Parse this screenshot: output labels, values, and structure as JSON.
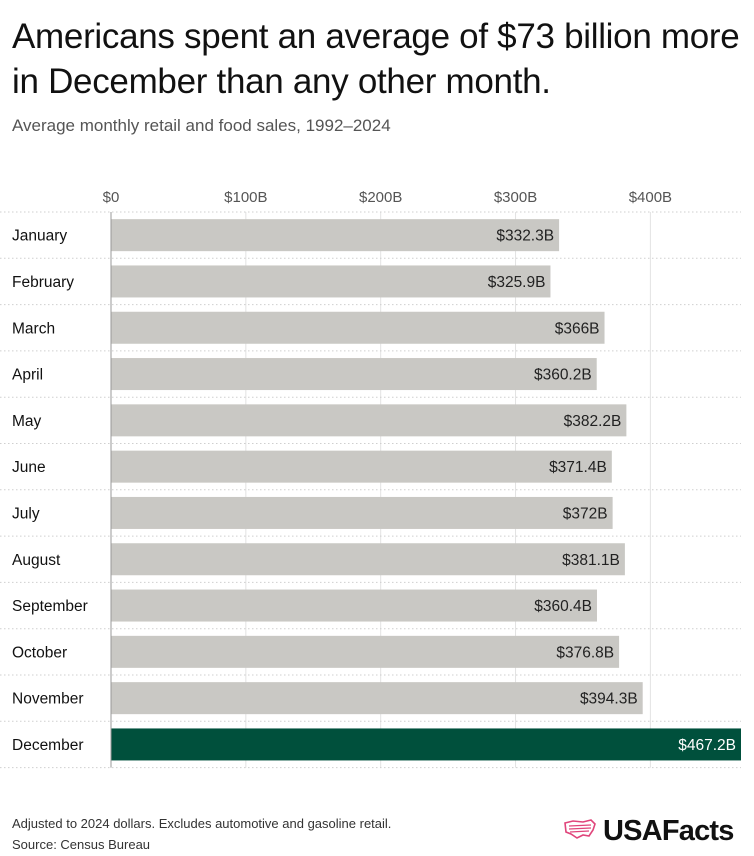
{
  "header": {
    "title": "Americans spent an average of $73 billion more in December than any other month.",
    "subtitle": "Average monthly retail and food sales, 1992–2024"
  },
  "footer": {
    "note": "Adjusted to 2024 dollars. Excludes automotive and gasoline retail.",
    "source": "Source: Census Bureau",
    "brand": "USAFacts"
  },
  "colors": {
    "bar": "#c9c8c4",
    "highlight": "#00503c",
    "brand_accent": "#e0457b"
  },
  "icons": {
    "logo": "usa-map-flag-icon"
  },
  "chart_data": {
    "type": "bar",
    "orientation": "horizontal",
    "categories": [
      "January",
      "February",
      "March",
      "April",
      "May",
      "June",
      "July",
      "August",
      "September",
      "October",
      "November",
      "December"
    ],
    "values": [
      332.3,
      325.9,
      366,
      360.2,
      382.2,
      371.4,
      372,
      381.1,
      360.4,
      376.8,
      394.3,
      467.2
    ],
    "value_labels": [
      "$332.3B",
      "$325.9B",
      "$366B",
      "$360.2B",
      "$382.2B",
      "$371.4B",
      "$372B",
      "$381.1B",
      "$360.4B",
      "$376.8B",
      "$394.3B",
      "$467.2B"
    ],
    "highlight": "December",
    "x_ticks": [
      0,
      100,
      200,
      300,
      400
    ],
    "x_tick_labels": [
      "$0",
      "$100B",
      "$200B",
      "$300B",
      "$400B"
    ],
    "xlim": [
      0,
      467.2
    ],
    "grid": true,
    "xlabel": "",
    "ylabel": ""
  }
}
